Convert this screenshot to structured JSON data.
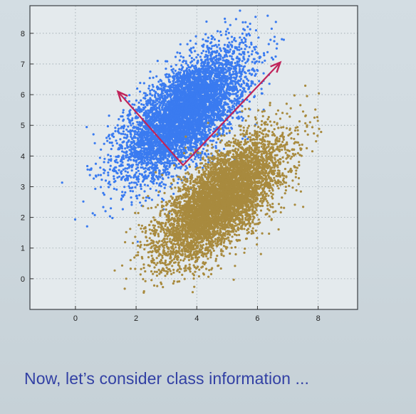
{
  "colors": {
    "background": "#cfd9df",
    "plot_background": "#e4eaed",
    "class_a": "#3a7bf0",
    "class_b": "#a88a3e",
    "arrows": "#c0245a",
    "caption": "#3240a4"
  },
  "caption": "Now, let’s consider class information ...",
  "chart_data": {
    "type": "scatter",
    "title": "",
    "xlabel": "",
    "ylabel": "",
    "xlim": [
      -1.5,
      9.3
    ],
    "ylim": [
      -1.0,
      8.9
    ],
    "xticks": [
      0,
      2,
      4,
      6,
      8
    ],
    "yticks": [
      0,
      1,
      2,
      3,
      4,
      5,
      6,
      7,
      8
    ],
    "grid": true,
    "series": [
      {
        "color": "#3a7bf0",
        "distribution": "gaussian",
        "n_points": 6000,
        "mean": [
          3.6,
          5.4
        ],
        "cov": [
          [
            1.0,
            0.65
          ],
          [
            0.65,
            1.0
          ]
        ],
        "x_range": [
          -0.9,
          7.0
        ],
        "y_range": [
          0.9,
          8.8
        ]
      },
      {
        "color": "#a88a3e",
        "distribution": "gaussian",
        "n_points": 6000,
        "mean": [
          4.8,
          2.6
        ],
        "cov": [
          [
            1.0,
            0.68
          ],
          [
            0.68,
            1.0
          ]
        ],
        "x_range": [
          1.2,
          8.6
        ],
        "y_range": [
          -0.5,
          6.5
        ]
      }
    ],
    "annotations": [
      {
        "type": "arrow",
        "from": [
          3.55,
          3.7
        ],
        "to": [
          1.4,
          6.1
        ],
        "color": "#c0245a"
      },
      {
        "type": "arrow",
        "from": [
          3.55,
          3.7
        ],
        "to": [
          6.75,
          7.05
        ],
        "color": "#c0245a"
      }
    ]
  }
}
